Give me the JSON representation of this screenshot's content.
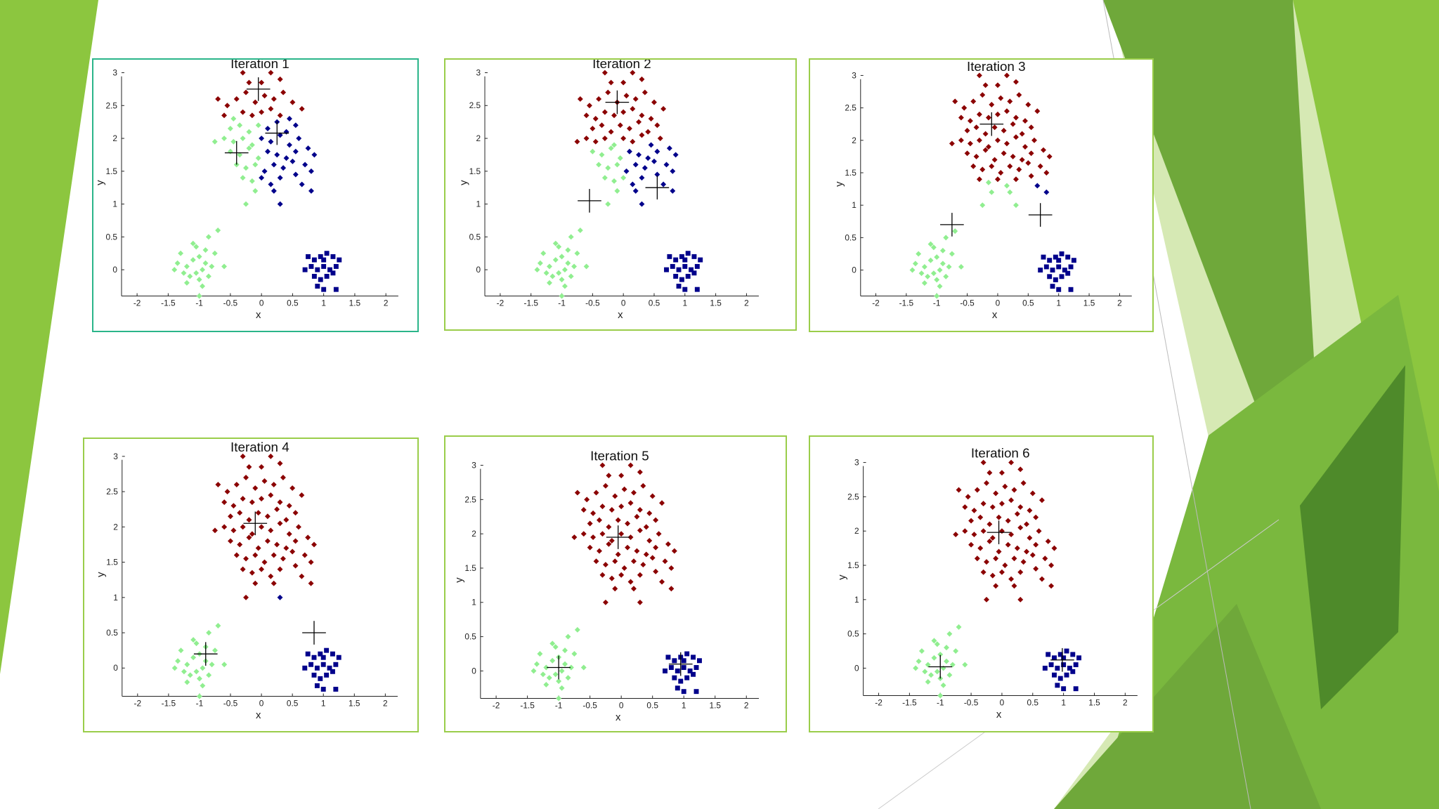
{
  "slide": {
    "colors": {
      "green_light": "#8cc63f",
      "green_mid": "#6fa83a",
      "green_dark": "#4e8a2a",
      "green_pale": "#d6e9b4",
      "panel_border": "#9acd4a",
      "panel_border_selected": "#2bb58a"
    }
  },
  "chart_data": [
    {
      "type": "scatter",
      "title": "Iteration 1",
      "xlabel": "x",
      "ylabel": "y",
      "xlim": [
        -2,
        2
      ],
      "ylim": [
        0,
        3
      ],
      "xticks": [
        "-2",
        "-1.5",
        "-1",
        "-0.5",
        "0",
        "0.5",
        "1",
        "1.5",
        "2"
      ],
      "yticks": [
        "0",
        "0.5",
        "1",
        "1.5",
        "2",
        "2.5",
        "3"
      ],
      "centroids": [
        [
          -0.05,
          2.75
        ],
        [
          -0.4,
          1.78
        ],
        [
          0.25,
          2.08
        ]
      ],
      "cluster_colors": {
        "red": "#8b0000",
        "green": "#90ee90",
        "blue": "#00008b"
      },
      "cluster_split": {
        "red_min_y": 2.35,
        "blue_min_x": 0.0
      }
    },
    {
      "type": "scatter",
      "title": "Iteration 2",
      "xlabel": "x",
      "ylabel": "y",
      "xlim": [
        -2,
        2
      ],
      "ylim": [
        0,
        3
      ],
      "xticks": [
        "-2",
        "-1.5",
        "-1",
        "-0.5",
        "0",
        "0.5",
        "1",
        "1.5",
        "2"
      ],
      "yticks": [
        "0",
        "0.5",
        "1",
        "1.5",
        "2",
        "2.5",
        "3"
      ],
      "centroids": [
        [
          -0.1,
          2.55
        ],
        [
          -0.55,
          1.05
        ],
        [
          0.55,
          1.25
        ]
      ],
      "cluster_colors": {
        "red": "#8b0000",
        "green": "#90ee90",
        "blue": "#00008b"
      },
      "cluster_split": {
        "red_min_y": 1.95,
        "blue_min_x": 0.05
      }
    },
    {
      "type": "scatter",
      "title": "Iteration 3",
      "xlabel": "x",
      "ylabel": "y",
      "xlim": [
        -2,
        2
      ],
      "ylim": [
        0,
        3
      ],
      "xticks": [
        "-2",
        "-1.5",
        "-1",
        "-0.5",
        "0",
        "0.5",
        "1",
        "1.5",
        "2"
      ],
      "yticks": [
        "0",
        "0.5",
        "1",
        "1.5",
        "2",
        "2.5",
        "3"
      ],
      "centroids": [
        [
          -0.1,
          2.25
        ],
        [
          -0.75,
          0.7
        ],
        [
          0.7,
          0.85
        ]
      ],
      "cluster_colors": {
        "red": "#8b0000",
        "green": "#90ee90",
        "blue": "#00008b"
      },
      "cluster_split": {
        "red_min_y": 1.4,
        "blue_min_x": 0.35
      }
    },
    {
      "type": "scatter",
      "title": "Iteration 4",
      "xlabel": "x",
      "ylabel": "y",
      "xlim": [
        -2,
        2
      ],
      "ylim": [
        0,
        3
      ],
      "xticks": [
        "-2",
        "-1.5",
        "-1",
        "-0.5",
        "0",
        "0.5",
        "1",
        "1.5",
        "2"
      ],
      "yticks": [
        "0",
        "0.5",
        "1",
        "1.5",
        "2",
        "2.5",
        "3"
      ],
      "centroids": [
        [
          -0.1,
          2.05
        ],
        [
          -0.9,
          0.2
        ],
        [
          0.85,
          0.5
        ]
      ],
      "cluster_colors": {
        "red": "#8b0000",
        "green": "#90ee90",
        "blue": "#00008b"
      },
      "cluster_split": {
        "red_min_y": 1.1,
        "blue_min_x": 0.25
      }
    },
    {
      "type": "scatter",
      "title": "Iteration 5",
      "xlabel": "x",
      "ylabel": "y",
      "xlim": [
        -2,
        2
      ],
      "ylim": [
        0,
        3
      ],
      "xticks": [
        "-2",
        "-1.5",
        "-1",
        "-0.5",
        "0",
        "0.5",
        "1",
        "1.5",
        "2"
      ],
      "yticks": [
        "0",
        "0.5",
        "1",
        "1.5",
        "2",
        "2.5",
        "3"
      ],
      "centroids": [
        [
          -0.05,
          1.95
        ],
        [
          -1.0,
          0.05
        ],
        [
          0.95,
          0.1
        ]
      ],
      "cluster_colors": {
        "red": "#8b0000",
        "green": "#90ee90",
        "blue": "#00008b"
      },
      "cluster_split": {
        "red_min_y": 0.9,
        "blue_min_x": 0.25
      }
    },
    {
      "type": "scatter",
      "title": "Iteration 6",
      "xlabel": "x",
      "ylabel": "y",
      "xlim": [
        -2,
        2
      ],
      "ylim": [
        0,
        3
      ],
      "xticks": [
        "-2",
        "-1.5",
        "-1",
        "-0.5",
        "0",
        "0.5",
        "1",
        "1.5",
        "2"
      ],
      "yticks": [
        "0",
        "0.5",
        "1",
        "1.5",
        "2",
        "2.5",
        "3"
      ],
      "centroids": [
        [
          -0.05,
          1.98
        ],
        [
          -1.0,
          0.02
        ],
        [
          0.98,
          0.12
        ]
      ],
      "cluster_colors": {
        "red": "#8b0000",
        "green": "#90ee90",
        "blue": "#00008b"
      },
      "cluster_split": {
        "red_min_y": 0.9,
        "blue_min_x": 0.25
      }
    }
  ],
  "points": {
    "top_cluster": [
      [
        -0.55,
        2.5
      ],
      [
        -0.4,
        2.6
      ],
      [
        -0.25,
        2.7
      ],
      [
        -0.1,
        2.55
      ],
      [
        0.05,
        2.65
      ],
      [
        0.2,
        2.6
      ],
      [
        0.35,
        2.7
      ],
      [
        0.5,
        2.55
      ],
      [
        -0.3,
        3.0
      ],
      [
        0.15,
        3.0
      ],
      [
        -0.2,
        2.85
      ],
      [
        0.3,
        2.9
      ],
      [
        -0.6,
        2.35
      ],
      [
        -0.45,
        2.3
      ],
      [
        -0.3,
        2.4
      ],
      [
        -0.15,
        2.35
      ],
      [
        0.0,
        2.4
      ],
      [
        0.15,
        2.45
      ],
      [
        0.3,
        2.35
      ],
      [
        0.45,
        2.3
      ],
      [
        -0.5,
        2.15
      ],
      [
        -0.35,
        2.2
      ],
      [
        -0.2,
        2.1
      ],
      [
        -0.05,
        2.2
      ],
      [
        0.1,
        2.15
      ],
      [
        0.25,
        2.25
      ],
      [
        0.4,
        2.1
      ],
      [
        0.55,
        2.2
      ],
      [
        -0.6,
        2.0
      ],
      [
        -0.45,
        1.95
      ],
      [
        -0.3,
        2.0
      ],
      [
        -0.15,
        1.9
      ],
      [
        0.0,
        2.0
      ],
      [
        0.15,
        1.95
      ],
      [
        0.3,
        2.05
      ],
      [
        0.45,
        1.9
      ],
      [
        0.6,
        2.0
      ],
      [
        -0.5,
        1.8
      ],
      [
        -0.35,
        1.75
      ],
      [
        -0.2,
        1.85
      ],
      [
        -0.05,
        1.7
      ],
      [
        0.1,
        1.8
      ],
      [
        0.25,
        1.75
      ],
      [
        0.4,
        1.7
      ],
      [
        0.55,
        1.8
      ],
      [
        0.75,
        1.85
      ],
      [
        -0.4,
        1.6
      ],
      [
        -0.25,
        1.55
      ],
      [
        -0.1,
        1.6
      ],
      [
        0.05,
        1.5
      ],
      [
        0.2,
        1.6
      ],
      [
        0.35,
        1.55
      ],
      [
        0.5,
        1.65
      ],
      [
        0.7,
        1.6
      ],
      [
        0.85,
        1.75
      ],
      [
        -0.3,
        1.4
      ],
      [
        -0.15,
        1.35
      ],
      [
        0.0,
        1.4
      ],
      [
        0.15,
        1.3
      ],
      [
        0.3,
        1.4
      ],
      [
        0.55,
        1.45
      ],
      [
        0.8,
        1.5
      ],
      [
        -0.75,
        1.95
      ],
      [
        -0.1,
        1.2
      ],
      [
        0.2,
        1.2
      ],
      [
        0.65,
        1.3
      ],
      [
        -0.25,
        1.0
      ],
      [
        0.3,
        1.0
      ],
      [
        0.8,
        1.2
      ],
      [
        -0.7,
        2.6
      ],
      [
        0.65,
        2.45
      ],
      [
        0.0,
        2.85
      ]
    ],
    "bottom_left_cluster": [
      [
        -1.35,
        0.1
      ],
      [
        -1.2,
        0.05
      ],
      [
        -1.1,
        0.15
      ],
      [
        -1.0,
        0.2
      ],
      [
        -0.9,
        0.1
      ],
      [
        -0.8,
        0.05
      ],
      [
        -1.25,
        -0.05
      ],
      [
        -1.15,
        -0.1
      ],
      [
        -1.05,
        -0.05
      ],
      [
        -0.95,
        0.0
      ],
      [
        -0.85,
        -0.1
      ],
      [
        -1.3,
        0.25
      ],
      [
        -1.05,
        0.35
      ],
      [
        -0.9,
        0.3
      ],
      [
        -1.2,
        -0.2
      ],
      [
        -1.0,
        -0.15
      ],
      [
        -0.75,
        0.25
      ],
      [
        -0.85,
        0.5
      ],
      [
        -0.7,
        0.6
      ],
      [
        -1.0,
        -0.4
      ],
      [
        -0.6,
        0.05
      ],
      [
        -1.1,
        0.4
      ],
      [
        -0.95,
        -0.25
      ],
      [
        -1.4,
        0.0
      ]
    ],
    "bottom_right_cluster": [
      [
        0.75,
        0.2
      ],
      [
        0.85,
        0.15
      ],
      [
        0.95,
        0.2
      ],
      [
        1.05,
        0.25
      ],
      [
        1.15,
        0.2
      ],
      [
        1.25,
        0.15
      ],
      [
        0.8,
        0.05
      ],
      [
        0.9,
        0.0
      ],
      [
        1.0,
        0.05
      ],
      [
        1.1,
        0.0
      ],
      [
        1.2,
        0.05
      ],
      [
        0.85,
        -0.1
      ],
      [
        0.95,
        -0.15
      ],
      [
        1.05,
        -0.1
      ],
      [
        1.15,
        -0.05
      ],
      [
        0.9,
        -0.25
      ],
      [
        1.0,
        -0.3
      ],
      [
        1.2,
        -0.3
      ],
      [
        1.0,
        0.15
      ],
      [
        0.7,
        0.0
      ]
    ]
  }
}
